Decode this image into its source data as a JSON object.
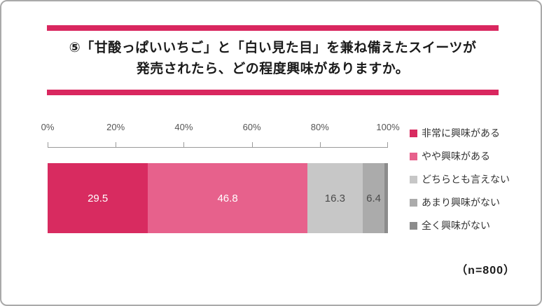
{
  "title": {
    "line1": "⑤「甘酸っぱいいちご」と「白い見た目」を兼ね備えたスイーツが",
    "line2": "発売されたら、どの程度興味がありますか。"
  },
  "accent_color": "#D9275F",
  "sample_size_label": "（n=800）",
  "chart_data": {
    "type": "bar",
    "orientation": "horizontal-stacked",
    "title": "⑤「甘酸っぱいいちご」と「白い見た目」を兼ね備えたスイーツが発売されたら、どの程度興味がありますか。",
    "n": 800,
    "xlim": [
      0,
      100
    ],
    "axis_ticks": [
      "0%",
      "20%",
      "40%",
      "60%",
      "80%",
      "100%"
    ],
    "grid": false,
    "legend_position": "right",
    "series": [
      {
        "name": "非常に興味がある",
        "value": 29.5,
        "label": "29.5",
        "color": "#D82B60",
        "label_color": "#ffffff"
      },
      {
        "name": "やや興味がある",
        "value": 46.8,
        "label": "46.8",
        "color": "#E7618C",
        "label_color": "#ffffff"
      },
      {
        "name": "どちらとも言えない",
        "value": 16.3,
        "label": "16.3",
        "color": "#C7C7C7",
        "label_color": "#4a4a4a"
      },
      {
        "name": "あまり興味がない",
        "value": 6.4,
        "label": "6.4",
        "color": "#ABABAB",
        "label_color": "#4a4a4a"
      },
      {
        "name": "全く興味がない",
        "value": 1.0,
        "label": "",
        "color": "#8C8C8C",
        "label_color": "#4a4a4a"
      }
    ]
  }
}
